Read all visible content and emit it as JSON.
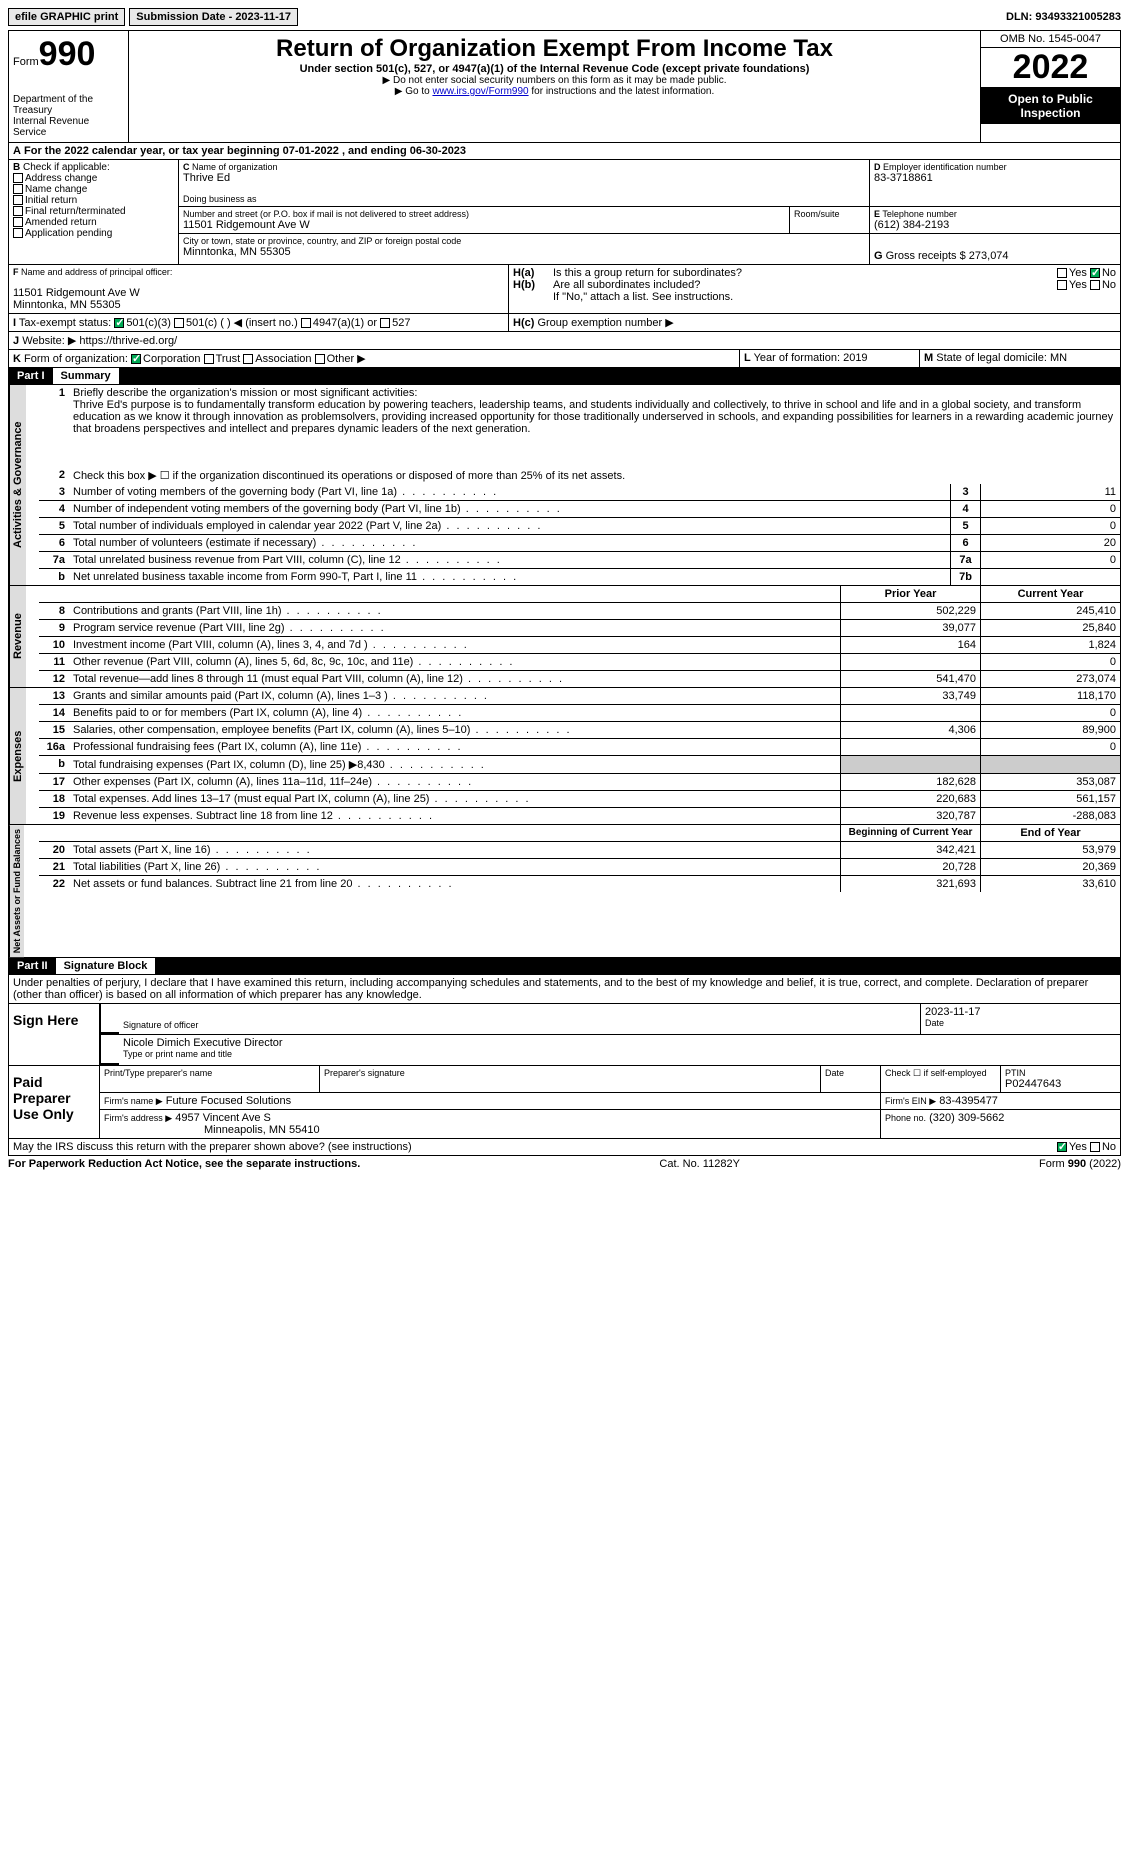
{
  "topbar": {
    "efile": "efile GRAPHIC print",
    "submission_label": "Submission Date - 2023-11-17",
    "dln_label": "DLN: 93493321005283"
  },
  "header": {
    "form_word": "Form",
    "form_num": "990",
    "dept": "Department of the Treasury",
    "irs": "Internal Revenue Service",
    "title": "Return of Organization Exempt From Income Tax",
    "subtitle": "Under section 501(c), 527, or 4947(a)(1) of the Internal Revenue Code (except private foundations)",
    "warn": "Do not enter social security numbers on this form as it may be made public.",
    "goto": "Go to ",
    "goto_link": "www.irs.gov/Form990",
    "goto_after": " for instructions and the latest information.",
    "omb": "OMB No. 1545-0047",
    "year": "2022",
    "open": "Open to Public Inspection"
  },
  "lineA": {
    "text": "For the 2022 calendar year, or tax year beginning 07-01-2022   , and ending 06-30-2023"
  },
  "B": {
    "label": "Check if applicable:",
    "items": [
      "Address change",
      "Name change",
      "Initial return",
      "Final return/terminated",
      "Amended return",
      "Application pending"
    ]
  },
  "C": {
    "name_label": "Name of organization",
    "name": "Thrive Ed",
    "dba_label": "Doing business as",
    "street_label": "Number and street (or P.O. box if mail is not delivered to street address)",
    "room_label": "Room/suite",
    "street": "11501 Ridgemount Ave W",
    "city_label": "City or town, state or province, country, and ZIP or foreign postal code",
    "city": "Minntonka, MN  55305"
  },
  "D": {
    "label": "Employer identification number",
    "value": "83-3718861"
  },
  "E": {
    "label": "Telephone number",
    "value": "(612) 384-2193"
  },
  "G": {
    "label": "Gross receipts $",
    "value": "273,074"
  },
  "F": {
    "label": "Name and address of principal officer:",
    "addr1": "11501 Ridgemount Ave W",
    "addr2": "Minntonka, MN  55305"
  },
  "H": {
    "a_label": "Is this a group return for subordinates?",
    "b_label": "Are all subordinates included?",
    "b_note": "If \"No,\" attach a list. See instructions.",
    "c_label": "Group exemption number ▶",
    "yes": "Yes",
    "no": "No"
  },
  "I": {
    "label": "Tax-exempt status:",
    "opts": [
      "501(c)(3)",
      "501(c) (  ) ◀ (insert no.)",
      "4947(a)(1) or",
      "527"
    ]
  },
  "J": {
    "label": "Website: ▶",
    "value": "https://thrive-ed.org/"
  },
  "K": {
    "label": "Form of organization:",
    "opts": [
      "Corporation",
      "Trust",
      "Association",
      "Other ▶"
    ]
  },
  "L": {
    "label": "Year of formation:",
    "value": "2019"
  },
  "M": {
    "label": "State of legal domicile:",
    "value": "MN"
  },
  "part1": {
    "hdr": "Part I",
    "title": "Summary",
    "l1_label": "Briefly describe the organization's mission or most significant activities:",
    "l1_text": "Thrive Ed's purpose is to fundamentally transform education by powering teachers, leadership teams, and students individually and collectively, to thrive in school and life and in a global society, and transform education as we know it through innovation as problemsolvers, providing increased opportunity for those traditionally underserved in schools, and expanding possibilities for learners in a rewarding academic journey that broadens perspectives and intellect and prepares dynamic leaders of the next generation.",
    "l2": "Check this box ▶ ☐  if the organization discontinued its operations or disposed of more than 25% of its net assets.",
    "lines_gov": [
      {
        "n": "3",
        "desc": "Number of voting members of the governing body (Part VI, line 1a)",
        "box": "3",
        "val": "11"
      },
      {
        "n": "4",
        "desc": "Number of independent voting members of the governing body (Part VI, line 1b)",
        "box": "4",
        "val": "0"
      },
      {
        "n": "5",
        "desc": "Total number of individuals employed in calendar year 2022 (Part V, line 2a)",
        "box": "5",
        "val": "0"
      },
      {
        "n": "6",
        "desc": "Total number of volunteers (estimate if necessary)",
        "box": "6",
        "val": "20"
      },
      {
        "n": "7a",
        "desc": "Total unrelated business revenue from Part VIII, column (C), line 12",
        "box": "7a",
        "val": "0"
      },
      {
        "n": "b",
        "desc": "Net unrelated business taxable income from Form 990-T, Part I, line 11",
        "box": "7b",
        "val": ""
      }
    ],
    "col_prior": "Prior Year",
    "col_current": "Current Year",
    "revenue": [
      {
        "n": "8",
        "desc": "Contributions and grants (Part VIII, line 1h)",
        "p": "502,229",
        "c": "245,410"
      },
      {
        "n": "9",
        "desc": "Program service revenue (Part VIII, line 2g)",
        "p": "39,077",
        "c": "25,840"
      },
      {
        "n": "10",
        "desc": "Investment income (Part VIII, column (A), lines 3, 4, and 7d )",
        "p": "164",
        "c": "1,824"
      },
      {
        "n": "11",
        "desc": "Other revenue (Part VIII, column (A), lines 5, 6d, 8c, 9c, 10c, and 11e)",
        "p": "",
        "c": "0"
      },
      {
        "n": "12",
        "desc": "Total revenue—add lines 8 through 11 (must equal Part VIII, column (A), line 12)",
        "p": "541,470",
        "c": "273,074"
      }
    ],
    "expenses": [
      {
        "n": "13",
        "desc": "Grants and similar amounts paid (Part IX, column (A), lines 1–3 )",
        "p": "33,749",
        "c": "118,170"
      },
      {
        "n": "14",
        "desc": "Benefits paid to or for members (Part IX, column (A), line 4)",
        "p": "",
        "c": "0"
      },
      {
        "n": "15",
        "desc": "Salaries, other compensation, employee benefits (Part IX, column (A), lines 5–10)",
        "p": "4,306",
        "c": "89,900"
      },
      {
        "n": "16a",
        "desc": "Professional fundraising fees (Part IX, column (A), line 11e)",
        "p": "",
        "c": "0"
      },
      {
        "n": "b",
        "desc": "Total fundraising expenses (Part IX, column (D), line 25) ▶8,430",
        "p": "shade",
        "c": "shade"
      },
      {
        "n": "17",
        "desc": "Other expenses (Part IX, column (A), lines 11a–11d, 11f–24e)",
        "p": "182,628",
        "c": "353,087"
      },
      {
        "n": "18",
        "desc": "Total expenses. Add lines 13–17 (must equal Part IX, column (A), line 25)",
        "p": "220,683",
        "c": "561,157"
      },
      {
        "n": "19",
        "desc": "Revenue less expenses. Subtract line 18 from line 12",
        "p": "320,787",
        "c": "-288,083"
      }
    ],
    "col_begin": "Beginning of Current Year",
    "col_end": "End of Year",
    "netassets": [
      {
        "n": "20",
        "desc": "Total assets (Part X, line 16)",
        "p": "342,421",
        "c": "53,979"
      },
      {
        "n": "21",
        "desc": "Total liabilities (Part X, line 26)",
        "p": "20,728",
        "c": "20,369"
      },
      {
        "n": "22",
        "desc": "Net assets or fund balances. Subtract line 21 from line 20",
        "p": "321,693",
        "c": "33,610"
      }
    ],
    "tab_gov": "Activities & Governance",
    "tab_rev": "Revenue",
    "tab_exp": "Expenses",
    "tab_net": "Net Assets or Fund Balances"
  },
  "part2": {
    "hdr": "Part II",
    "title": "Signature Block",
    "decl": "Under penalties of perjury, I declare that I have examined this return, including accompanying schedules and statements, and to the best of my knowledge and belief, it is true, correct, and complete. Declaration of preparer (other than officer) is based on all information of which preparer has any knowledge.",
    "sign_here": "Sign Here",
    "sig_officer": "Signature of officer",
    "date": "Date",
    "sig_date": "2023-11-17",
    "officer_name": "Nicole Dimich  Executive Director",
    "type_name": "Type or print name and title",
    "paid": "Paid Preparer Use Only",
    "prep_name_label": "Print/Type preparer's name",
    "prep_sig_label": "Preparer's signature",
    "date_label": "Date",
    "check_self": "Check ☐ if self-employed",
    "ptin_label": "PTIN",
    "ptin": "P02447643",
    "firm_name_label": "Firm's name   ▶",
    "firm_name": "Future Focused Solutions",
    "firm_ein_label": "Firm's EIN ▶",
    "firm_ein": "83-4395477",
    "firm_addr_label": "Firm's address ▶",
    "firm_addr1": "4957 Vincent Ave S",
    "firm_addr2": "Minneapolis, MN  55410",
    "phone_label": "Phone no.",
    "phone": "(320) 309-5662",
    "discuss": "May the IRS discuss this return with the preparer shown above? (see instructions)",
    "yes": "Yes",
    "no": "No"
  },
  "footer": {
    "left": "For Paperwork Reduction Act Notice, see the separate instructions.",
    "mid": "Cat. No. 11282Y",
    "right": "Form 990 (2022)"
  }
}
